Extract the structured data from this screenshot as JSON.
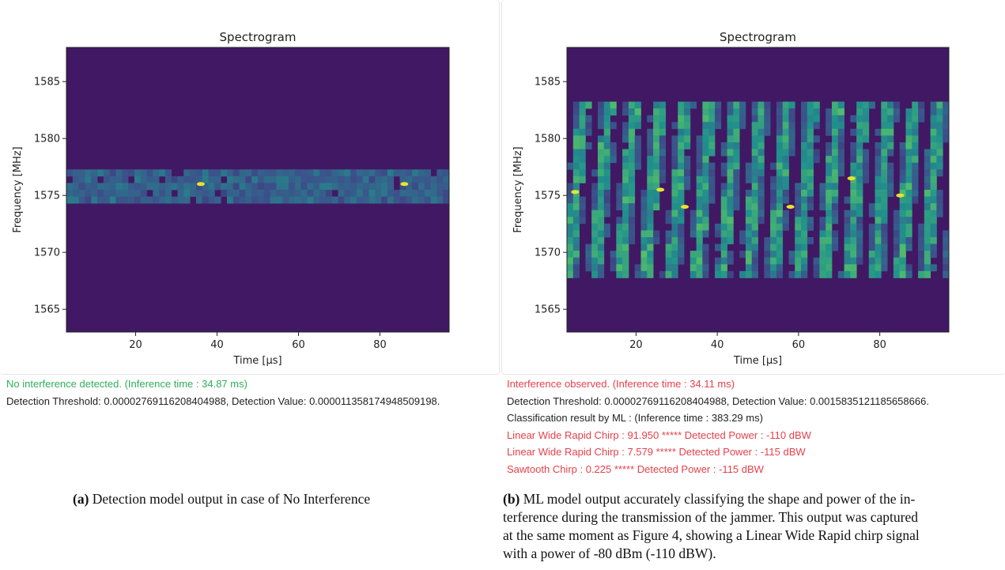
{
  "figure_a": {
    "chart_data": {
      "type": "heatmap",
      "title": "Spectrogram",
      "xlabel": "Time [μs]",
      "ylabel": "Frequency [MHz]",
      "xlim": [
        3,
        97
      ],
      "ylim": [
        1563,
        1588
      ],
      "xticks": [
        "20",
        "40",
        "60",
        "80"
      ],
      "yticks": [
        "1565",
        "1570",
        "1575",
        "1580",
        "1585"
      ],
      "colormap": "viridis",
      "content": "noise floor with a faint narrowband line near 1575.5 MHz",
      "bright_spots": [
        {
          "t": 36,
          "f": 1576
        },
        {
          "t": 86,
          "f": 1576
        }
      ]
    },
    "log": [
      {
        "text": "No interference detected. (Inference time : 34.87 ms)",
        "kind": "ok"
      },
      {
        "text": "Detection Threshold: 0.00002769116208404988, Detection Value: 0.000011358174948509198.",
        "kind": "normal"
      }
    ],
    "caption_label": "(a)",
    "caption_text": " Detection model output in case of No Interference"
  },
  "figure_b": {
    "chart_data": {
      "type": "heatmap",
      "title": "Spectrogram",
      "xlabel": "Time [μs]",
      "ylabel": "Frequency [MHz]",
      "xlim": [
        3,
        97
      ],
      "ylim": [
        1563,
        1588
      ],
      "xticks": [
        "20",
        "40",
        "60",
        "80"
      ],
      "yticks": [
        "1565",
        "1570",
        "1575",
        "1580",
        "1585"
      ],
      "colormap": "viridis",
      "content": "repeated linear chirp sweeps",
      "chirp_count": 15,
      "chirp_freq_range": [
        1568,
        1583
      ],
      "bright_spots": [
        {
          "t": 5,
          "f": 1575.3
        },
        {
          "t": 26,
          "f": 1575.5
        },
        {
          "t": 32,
          "f": 1574
        },
        {
          "t": 58,
          "f": 1574
        },
        {
          "t": 73,
          "f": 1576.5
        },
        {
          "t": 85,
          "f": 1575
        }
      ]
    },
    "log": [
      {
        "text": "Interference observed. (Inference time : 34.11 ms)",
        "kind": "bad"
      },
      {
        "text": "Detection Threshold: 0.00002769116208404988, Detection Value: 0.0015835121185658666.",
        "kind": "normal"
      },
      {
        "text": "Classification result by ML : (Inference time : 383.29 ms)",
        "kind": "normal"
      },
      {
        "text": "Linear Wide Rapid Chirp : 91.950 ***** Detected Power : -110 dBW",
        "kind": "bad"
      },
      {
        "text": "Linear Wide Rapid Chirp : 7.579 ***** Detected Power : -115 dBW",
        "kind": "bad"
      },
      {
        "text": "Sawtooth Chirp : 0.225 ***** Detected Power : -115 dBW",
        "kind": "bad"
      }
    ],
    "caption_label": "(b)",
    "caption_lines": [
      " ML model output accurately classifying the shape and power of the in-",
      "terference during the transmission of the jammer. This output was captured",
      "at the same moment as Figure 4, showing a Linear Wide Rapid chirp signal",
      "with a power of -80 dBm (-110 dBW)."
    ]
  },
  "colors": {
    "ok_text": "#2fae5a",
    "alert_text": "#e8404b",
    "viridis_low": "#30155e",
    "viridis_mid": "#21918c",
    "viridis_high": "#fde725"
  }
}
